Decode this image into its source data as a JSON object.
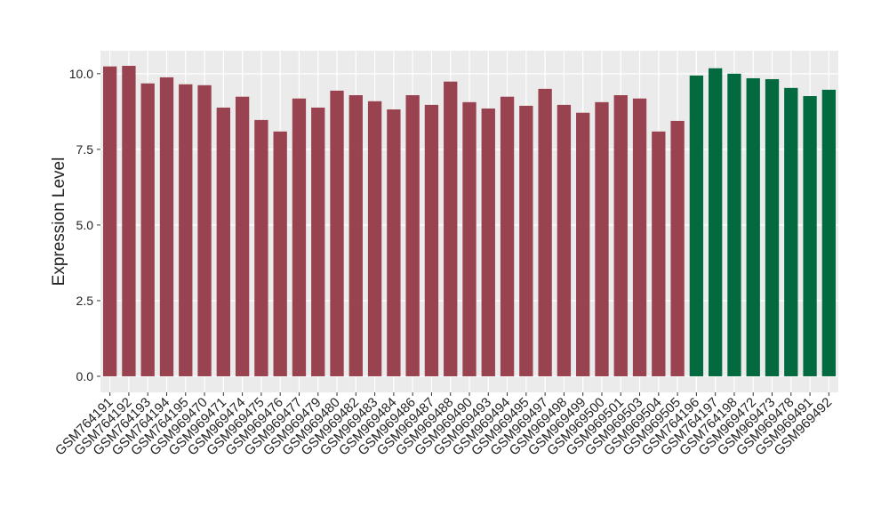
{
  "chart_data": {
    "type": "bar",
    "ylabel": "Expression Level",
    "categories": [
      "GSM764191",
      "GSM764192",
      "GSM764193",
      "GSM764194",
      "GSM764195",
      "GSM969470",
      "GSM969471",
      "GSM969474",
      "GSM969475",
      "GSM969476",
      "GSM969477",
      "GSM969479",
      "GSM969480",
      "GSM969482",
      "GSM969483",
      "GSM969484",
      "GSM969486",
      "GSM969487",
      "GSM969488",
      "GSM969490",
      "GSM969493",
      "GSM969494",
      "GSM969495",
      "GSM969497",
      "GSM969498",
      "GSM969499",
      "GSM969500",
      "GSM969501",
      "GSM969503",
      "GSM969504",
      "GSM969505",
      "GSM764196",
      "GSM764197",
      "GSM764198",
      "GSM969472",
      "GSM969473",
      "GSM969478",
      "GSM969491",
      "GSM969492"
    ],
    "values": [
      10.24,
      10.26,
      9.68,
      9.88,
      9.65,
      9.62,
      8.88,
      9.24,
      8.47,
      8.09,
      9.18,
      8.88,
      9.44,
      9.29,
      9.09,
      8.82,
      9.29,
      8.97,
      9.74,
      9.06,
      8.85,
      9.24,
      8.94,
      9.5,
      8.97,
      8.71,
      9.06,
      9.29,
      9.18,
      8.09,
      8.44,
      9.94,
      10.18,
      10.0,
      9.85,
      9.82,
      9.53,
      9.26,
      9.47
    ],
    "colors": [
      "#9a4350",
      "#9a4350",
      "#9a4350",
      "#9a4350",
      "#9a4350",
      "#9a4350",
      "#9a4350",
      "#9a4350",
      "#9a4350",
      "#9a4350",
      "#9a4350",
      "#9a4350",
      "#9a4350",
      "#9a4350",
      "#9a4350",
      "#9a4350",
      "#9a4350",
      "#9a4350",
      "#9a4350",
      "#9a4350",
      "#9a4350",
      "#9a4350",
      "#9a4350",
      "#9a4350",
      "#9a4350",
      "#9a4350",
      "#9a4350",
      "#9a4350",
      "#9a4350",
      "#9a4350",
      "#9a4350",
      "#036a40",
      "#036a40",
      "#036a40",
      "#036a40",
      "#036a40",
      "#036a40",
      "#036a40",
      "#036a40"
    ],
    "ylim": [
      -0.53,
      10.76
    ],
    "yticks": [
      {
        "value": 0,
        "label": "0.0"
      },
      {
        "value": 2.5,
        "label": "2.5"
      },
      {
        "value": 5,
        "label": "5.0"
      },
      {
        "value": 7.5,
        "label": "7.5"
      },
      {
        "value": 10,
        "label": "10.0"
      }
    ],
    "grid": true
  }
}
